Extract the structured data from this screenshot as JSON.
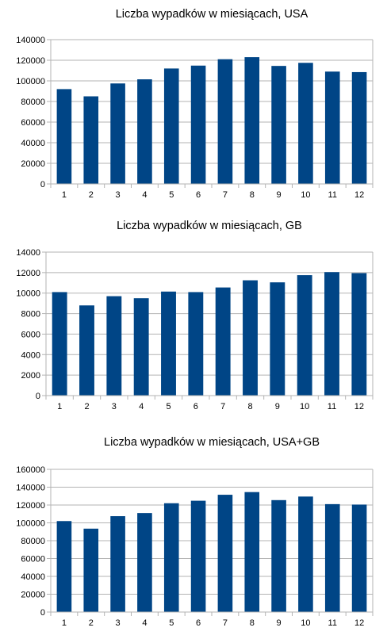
{
  "chart_data": [
    {
      "type": "bar",
      "title": "Liczba wypadków w miesiącach, USA",
      "categories": [
        "1",
        "2",
        "3",
        "4",
        "5",
        "6",
        "7",
        "8",
        "9",
        "10",
        "11",
        "12"
      ],
      "values": [
        92000,
        85000,
        97500,
        101500,
        112000,
        114800,
        121000,
        123000,
        114500,
        117500,
        109000,
        108500
      ],
      "ylim": [
        0,
        140000
      ],
      "yticks": [
        0,
        20000,
        40000,
        60000,
        80000,
        100000,
        120000,
        140000
      ],
      "ytick_labels": [
        "0",
        "20000",
        "40000",
        "60000",
        "80000",
        "100000",
        "120000",
        "140000"
      ],
      "grid": true,
      "color": "#004586"
    },
    {
      "type": "bar",
      "title": "Liczba wypadków w miesiącach, GB",
      "categories": [
        "1",
        "2",
        "3",
        "4",
        "5",
        "6",
        "7",
        "8",
        "9",
        "10",
        "11",
        "12"
      ],
      "values": [
        10100,
        8800,
        9700,
        9500,
        10150,
        10100,
        10550,
        11250,
        11050,
        11750,
        12050,
        11950
      ],
      "ylim": [
        0,
        14000
      ],
      "yticks": [
        0,
        2000,
        4000,
        6000,
        8000,
        10000,
        12000,
        14000
      ],
      "ytick_labels": [
        "0",
        "2000",
        "4000",
        "6000",
        "8000",
        "10000",
        "12000",
        "14000"
      ],
      "grid": true,
      "color": "#004586"
    },
    {
      "type": "bar",
      "title": "Liczba wypadków w miesiącach, USA+GB",
      "categories": [
        "1",
        "2",
        "3",
        "4",
        "5",
        "6",
        "7",
        "8",
        "9",
        "10",
        "11",
        "12"
      ],
      "values": [
        102000,
        93500,
        107500,
        111000,
        122000,
        124800,
        131500,
        134500,
        125500,
        129500,
        121000,
        120500
      ],
      "ylim": [
        0,
        160000
      ],
      "yticks": [
        0,
        20000,
        40000,
        60000,
        80000,
        100000,
        120000,
        140000,
        160000
      ],
      "ytick_labels": [
        "0",
        "20000",
        "40000",
        "60000",
        "80000",
        "100000",
        "120000",
        "140000",
        "160000"
      ],
      "grid": true,
      "color": "#004586"
    }
  ]
}
